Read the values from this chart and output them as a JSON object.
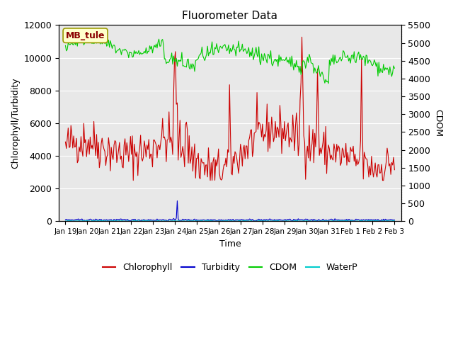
{
  "title": "Fluorometer Data",
  "xlabel": "Time",
  "ylabel_left": "Chlorophyll/Turbidity",
  "ylabel_right": "CDOM",
  "annotation": "MB_tule",
  "ylim_left": [
    0,
    12000
  ],
  "ylim_right": [
    0,
    5500
  ],
  "yticks_left": [
    0,
    2000,
    4000,
    6000,
    8000,
    10000,
    12000
  ],
  "yticks_right": [
    0,
    500,
    1000,
    1500,
    2000,
    2500,
    3000,
    3500,
    4000,
    4500,
    5000,
    5500
  ],
  "background_color": "#e8e8e8",
  "fig_color": "#ffffff",
  "legend_entries": [
    "Chlorophyll",
    "Turbidity",
    "CDOM",
    "WaterP"
  ],
  "legend_colors": [
    "#cc0000",
    "#0000cc",
    "#00cc00",
    "#00cccc"
  ],
  "xtick_labels": [
    "Jan 19",
    "Jan 20",
    "Jan 21",
    "Jan 22",
    "Jan 23",
    "Jan 24",
    "Jan 25",
    "Jan 26",
    "Jan 27",
    "Jan 28",
    "Jan 29",
    "Jan 30",
    "Jan 31",
    "Feb 1",
    "Feb 2",
    "Feb 3"
  ],
  "n_points": 360,
  "seed": 42
}
